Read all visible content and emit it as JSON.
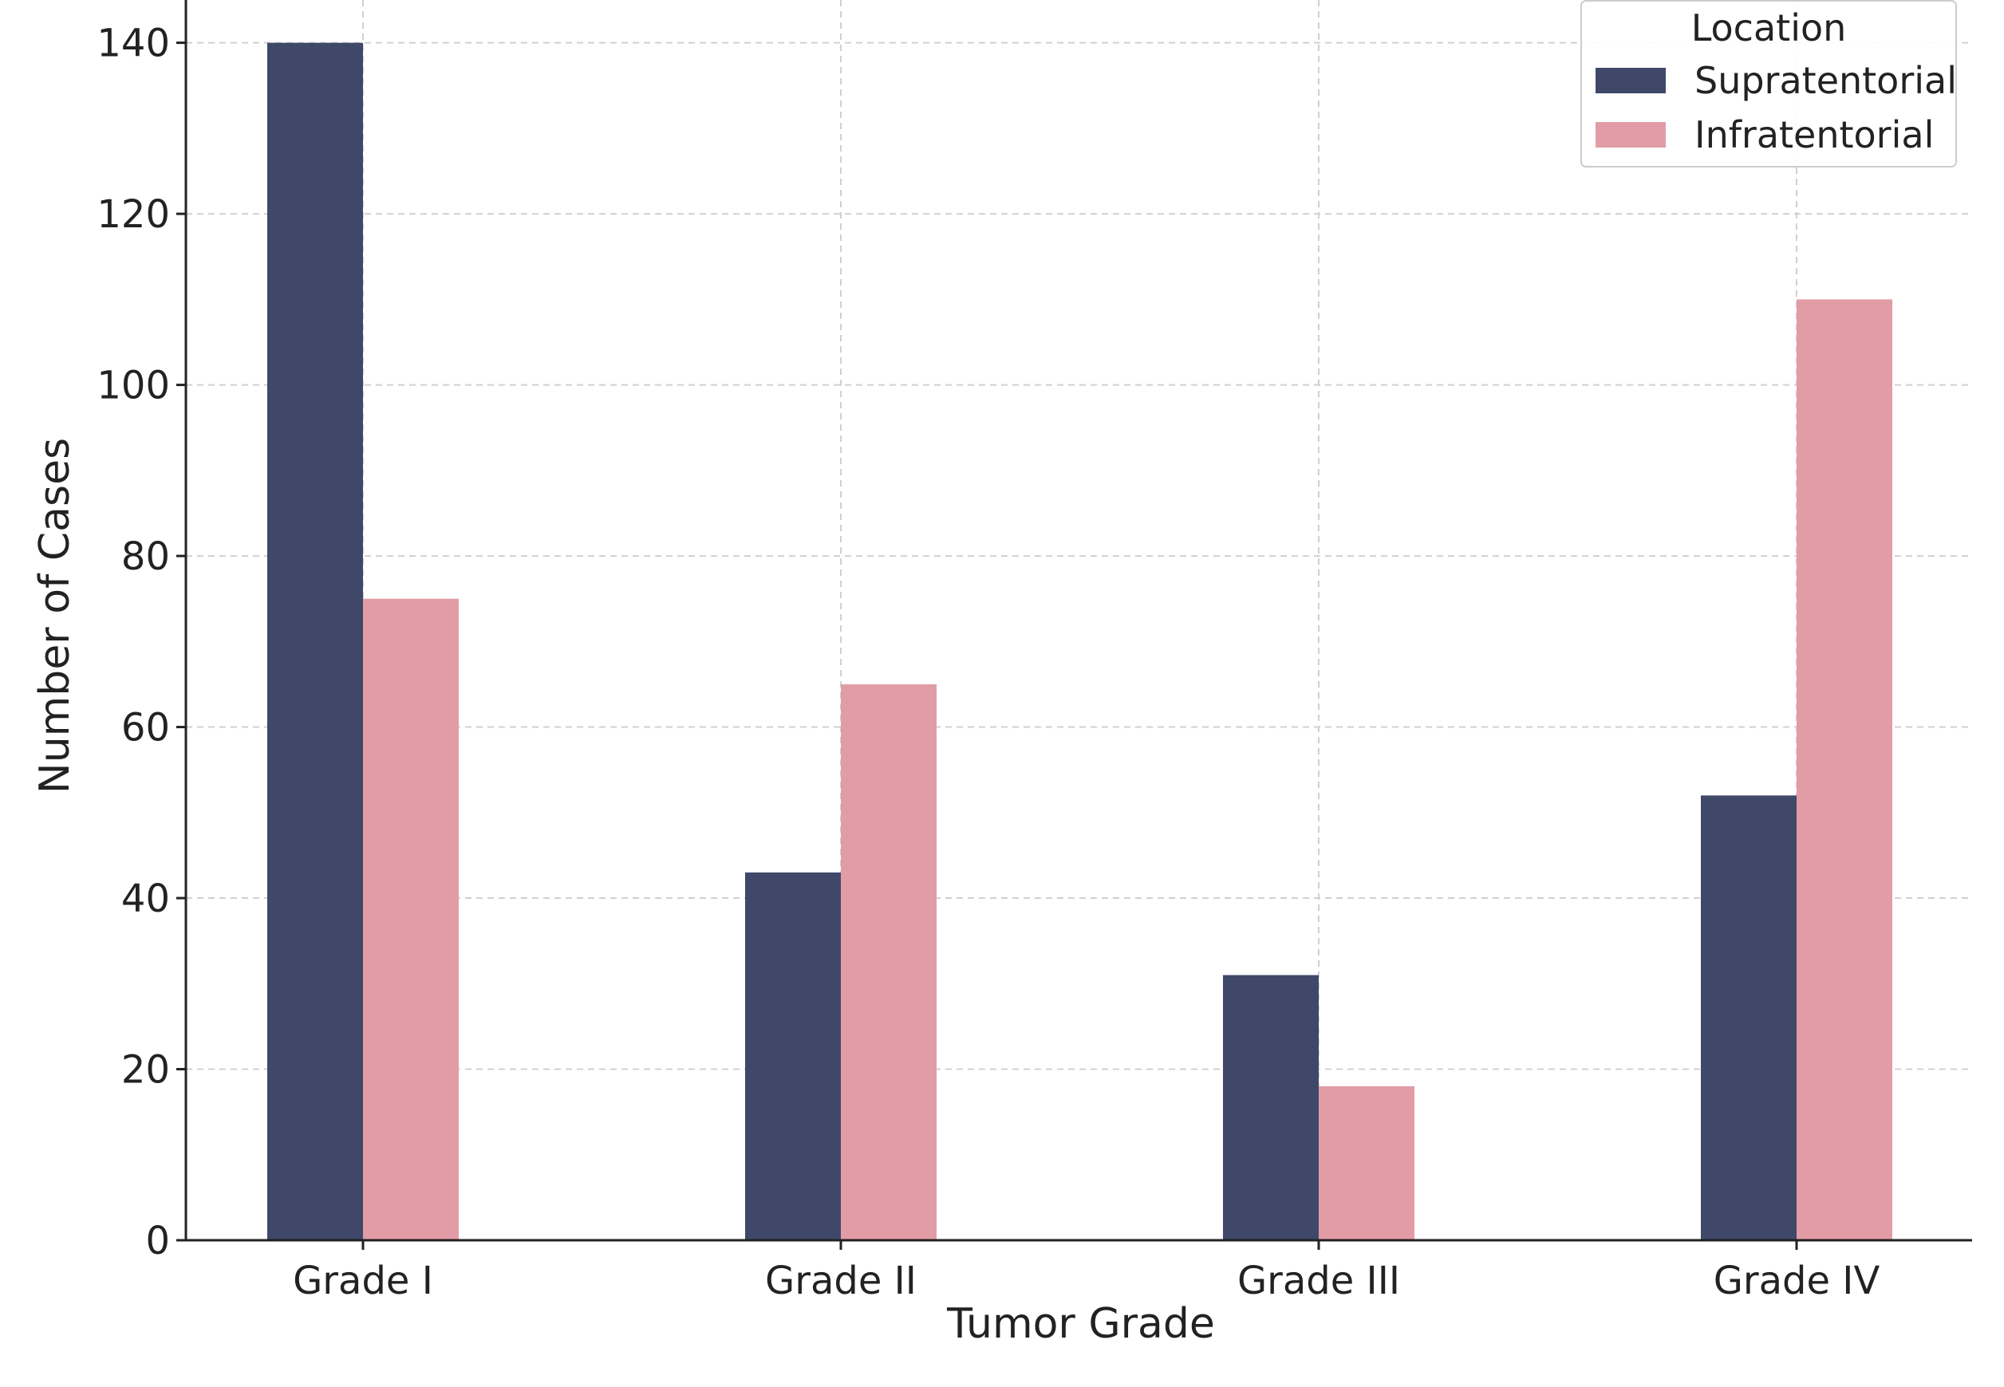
{
  "chart_data": {
    "type": "bar",
    "categories": [
      "Grade I",
      "Grade II",
      "Grade III",
      "Grade IV"
    ],
    "series": [
      {
        "name": "Supratentorial",
        "values": [
          140,
          43,
          31,
          52
        ],
        "color": "#3f4869"
      },
      {
        "name": "Infratentorial",
        "values": [
          75,
          65,
          18,
          110
        ],
        "color": "#e29ca6"
      }
    ],
    "title": "",
    "xlabel": "Tumor Grade",
    "ylabel": "Number of Cases",
    "ylim": [
      0,
      145
    ],
    "yticks": [
      0,
      20,
      40,
      60,
      80,
      100,
      120,
      140
    ],
    "grid": true,
    "grid_color": "#d0d0d0",
    "axis_color": "#222222",
    "legend": {
      "title": "Location",
      "placement": "top-right",
      "border_color": "#cccccc"
    }
  }
}
